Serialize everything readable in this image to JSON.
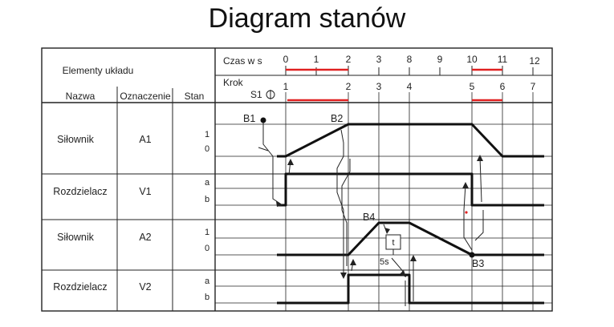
{
  "title": "Diagram stanów",
  "header": {
    "elements_label": "Elementy układu",
    "col_name": "Nazwa",
    "col_designation": "Oznaczenie",
    "col_state": "Stan",
    "time_label": "Czas w s",
    "step_label": "Krok",
    "start_signal": "S1"
  },
  "time_ticks": [
    "0",
    "1",
    "2",
    "3",
    "8",
    "9",
    "10",
    "11",
    "12"
  ],
  "step_ticks": [
    "1",
    "2",
    "3",
    "4",
    "5",
    "6",
    "7"
  ],
  "rows": [
    {
      "name": "Siłownik",
      "designation": "A1",
      "state_top": "1",
      "state_bottom": "0"
    },
    {
      "name": "Rozdzielacz",
      "designation": "V1",
      "state_top": "a",
      "state_bottom": "b"
    },
    {
      "name": "Siłownik",
      "designation": "A2",
      "state_top": "1",
      "state_bottom": "0"
    },
    {
      "name": "Rozdzielacz",
      "designation": "V2",
      "state_top": "a",
      "state_bottom": "b"
    }
  ],
  "signals": {
    "b1": "B1",
    "b2": "B2",
    "b3": "B3",
    "b4": "B4",
    "timer": "t",
    "timer_delay": "5s"
  },
  "colors": {
    "lines": "#222222",
    "highlight": "#e02020"
  }
}
